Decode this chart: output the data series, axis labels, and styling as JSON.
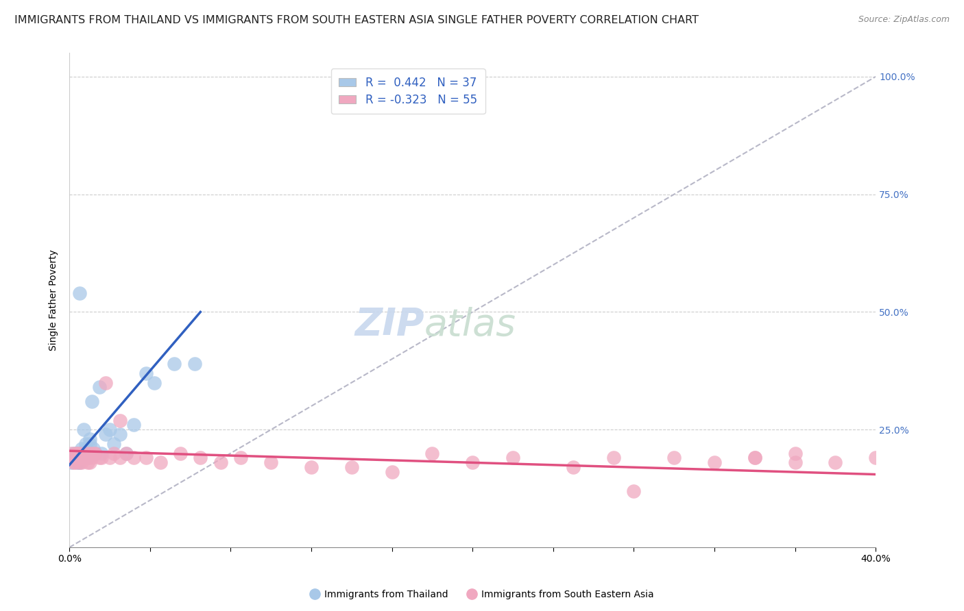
{
  "title": "IMMIGRANTS FROM THAILAND VS IMMIGRANTS FROM SOUTH EASTERN ASIA SINGLE FATHER POVERTY CORRELATION CHART",
  "source": "Source: ZipAtlas.com",
  "ylabel": "Single Father Poverty",
  "xlim": [
    0.0,
    0.4
  ],
  "ylim": [
    0.0,
    1.05
  ],
  "yticks": [
    0.0,
    0.25,
    0.5,
    0.75,
    1.0
  ],
  "ytick_labels": [
    "",
    "25.0%",
    "50.0%",
    "75.0%",
    "100.0%"
  ],
  "legend_r1": "R =  0.442",
  "legend_n1": "N = 37",
  "legend_r2": "R = -0.323",
  "legend_n2": "N = 55",
  "color_blue": "#a8c8e8",
  "color_pink": "#f0a8c0",
  "line_blue": "#3060c0",
  "line_pink": "#e05080",
  "line_gray": "#b8b8c8",
  "watermark_zip": "ZIP",
  "watermark_atlas": "atlas",
  "blue_scatter_x": [
    0.001,
    0.002,
    0.002,
    0.003,
    0.003,
    0.004,
    0.004,
    0.004,
    0.005,
    0.005,
    0.005,
    0.006,
    0.006,
    0.006,
    0.007,
    0.007,
    0.008,
    0.008,
    0.009,
    0.01,
    0.01,
    0.011,
    0.012,
    0.013,
    0.015,
    0.016,
    0.018,
    0.02,
    0.022,
    0.025,
    0.028,
    0.032,
    0.038,
    0.042,
    0.052,
    0.062,
    0.005
  ],
  "blue_scatter_y": [
    0.18,
    0.19,
    0.2,
    0.19,
    0.2,
    0.18,
    0.2,
    0.19,
    0.19,
    0.2,
    0.18,
    0.19,
    0.21,
    0.2,
    0.19,
    0.25,
    0.21,
    0.22,
    0.19,
    0.22,
    0.23,
    0.31,
    0.21,
    0.2,
    0.34,
    0.2,
    0.24,
    0.25,
    0.22,
    0.24,
    0.2,
    0.26,
    0.37,
    0.35,
    0.39,
    0.39,
    0.54
  ],
  "pink_scatter_x": [
    0.001,
    0.002,
    0.002,
    0.003,
    0.003,
    0.004,
    0.004,
    0.005,
    0.005,
    0.005,
    0.006,
    0.006,
    0.007,
    0.008,
    0.008,
    0.009,
    0.009,
    0.01,
    0.01,
    0.011,
    0.012,
    0.013,
    0.015,
    0.016,
    0.018,
    0.02,
    0.022,
    0.025,
    0.028,
    0.032,
    0.038,
    0.045,
    0.055,
    0.065,
    0.075,
    0.085,
    0.1,
    0.12,
    0.14,
    0.16,
    0.18,
    0.2,
    0.22,
    0.25,
    0.28,
    0.3,
    0.32,
    0.34,
    0.36,
    0.38,
    0.4,
    0.34,
    0.36,
    0.27,
    0.025
  ],
  "pink_scatter_y": [
    0.2,
    0.18,
    0.19,
    0.2,
    0.18,
    0.19,
    0.2,
    0.19,
    0.18,
    0.2,
    0.19,
    0.18,
    0.19,
    0.2,
    0.19,
    0.19,
    0.18,
    0.2,
    0.18,
    0.19,
    0.2,
    0.2,
    0.19,
    0.19,
    0.35,
    0.19,
    0.2,
    0.19,
    0.2,
    0.19,
    0.19,
    0.18,
    0.2,
    0.19,
    0.18,
    0.19,
    0.18,
    0.17,
    0.17,
    0.16,
    0.2,
    0.18,
    0.19,
    0.17,
    0.12,
    0.19,
    0.18,
    0.19,
    0.18,
    0.18,
    0.19,
    0.19,
    0.2,
    0.19,
    0.27
  ],
  "blue_trend_x": [
    0.0,
    0.065
  ],
  "blue_trend_y": [
    0.175,
    0.5
  ],
  "pink_trend_x": [
    0.0,
    0.4
  ],
  "pink_trend_y": [
    0.205,
    0.155
  ],
  "gray_trend_x": [
    0.0,
    0.4
  ],
  "gray_trend_y": [
    0.0,
    1.0
  ],
  "title_fontsize": 11.5,
  "source_fontsize": 9,
  "axis_label_fontsize": 10,
  "tick_fontsize": 10,
  "legend_fontsize": 12,
  "watermark_fontsize": 40
}
